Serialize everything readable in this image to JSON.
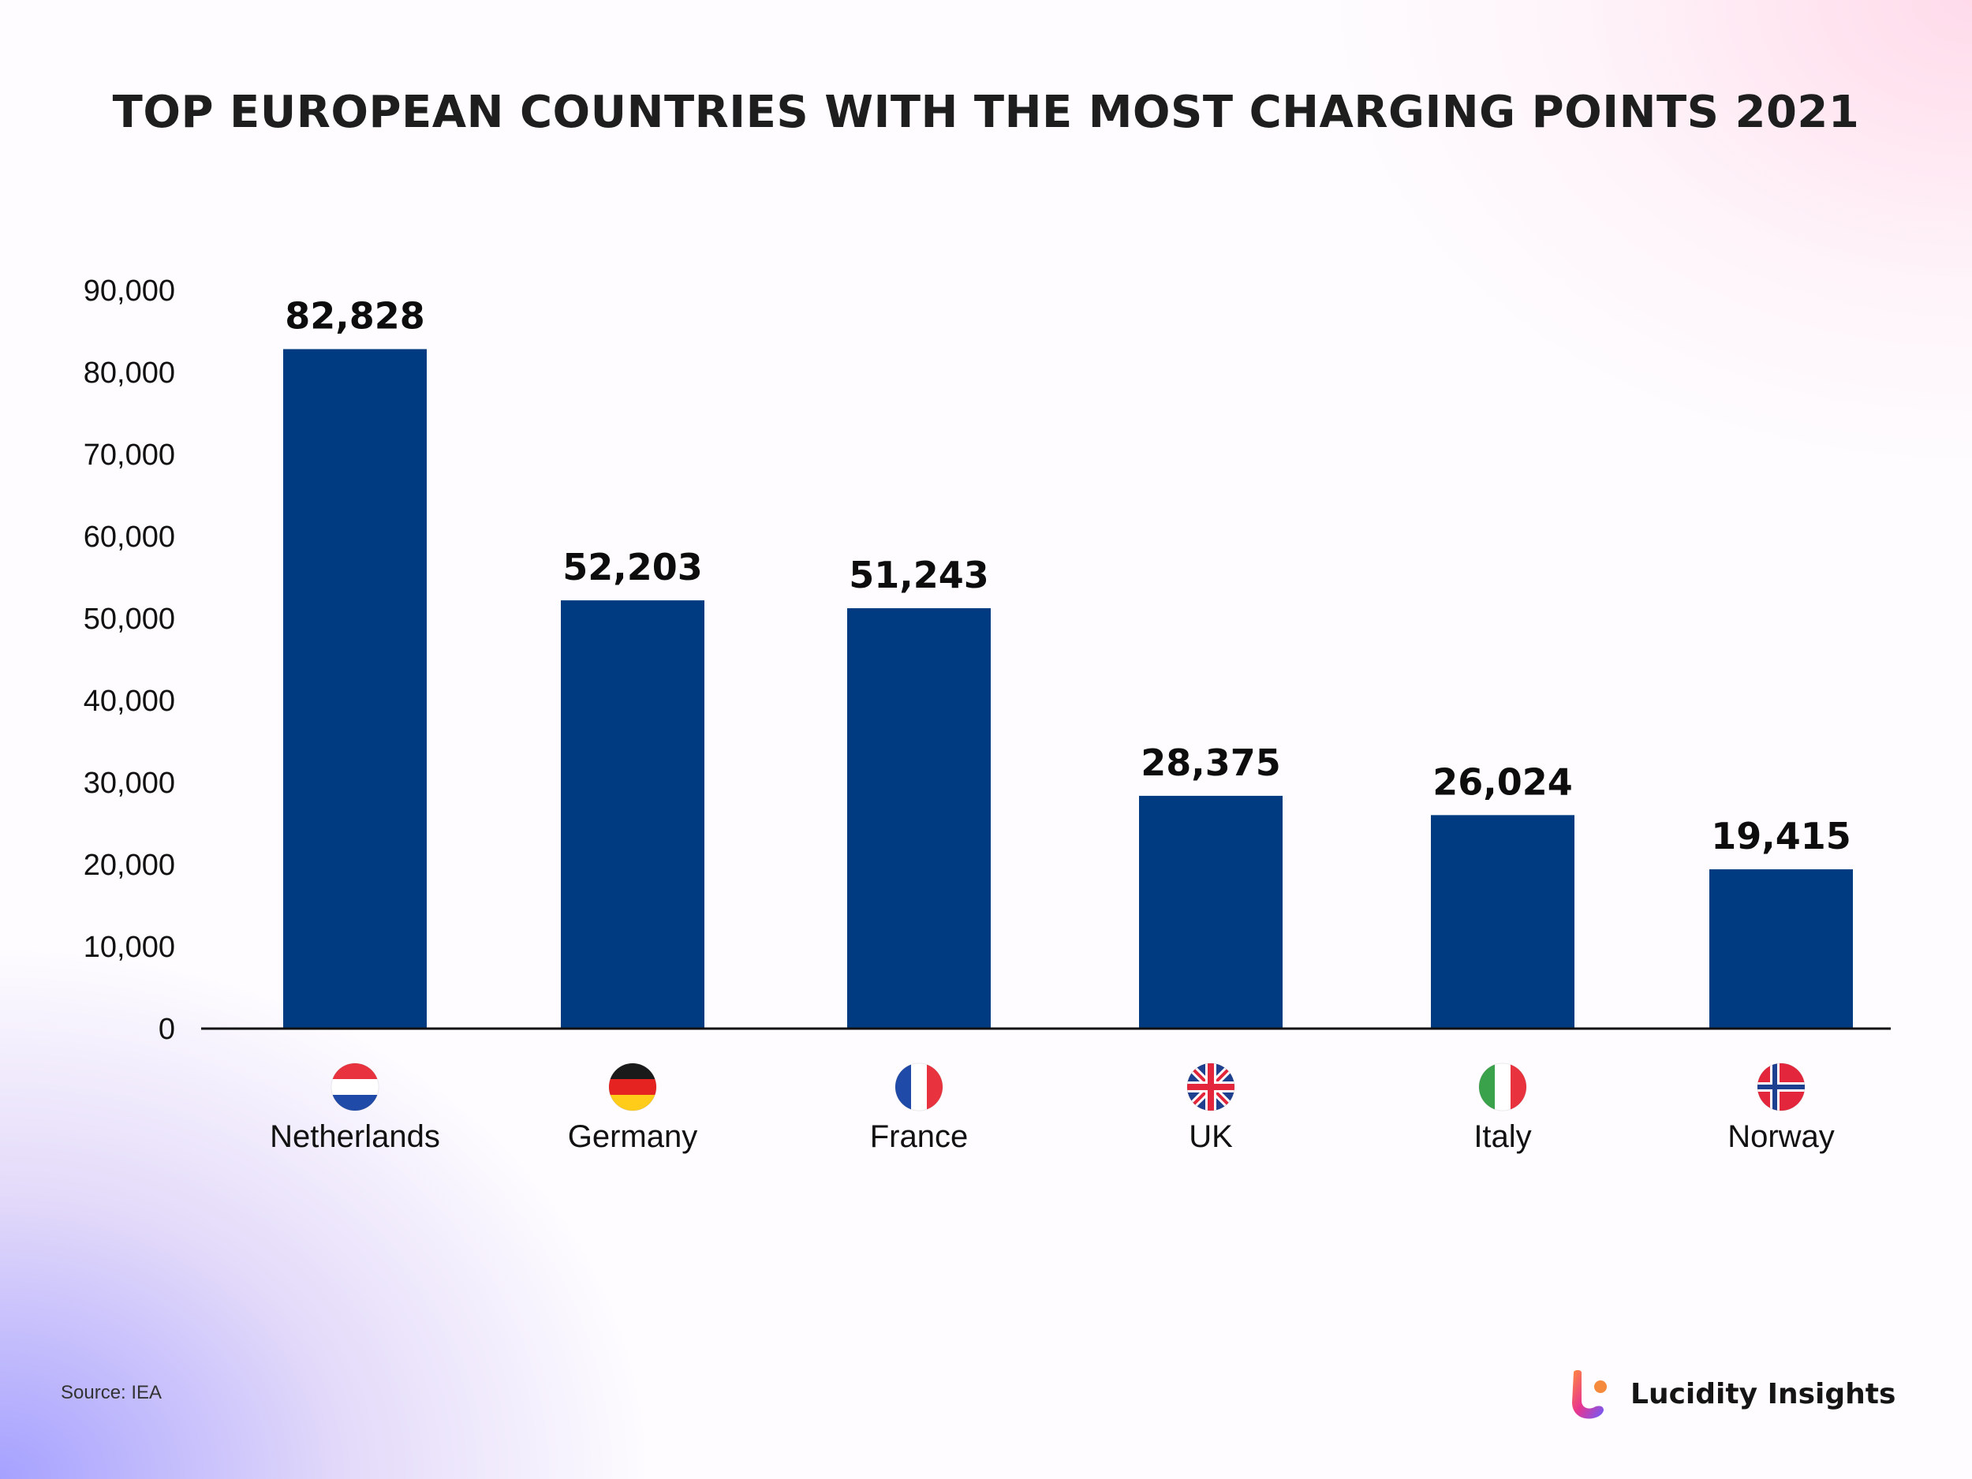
{
  "chart_data": {
    "type": "bar",
    "title": "TOP EUROPEAN COUNTRIES WITH THE MOST CHARGING POINTS 2021",
    "categories": [
      "Netherlands",
      "Germany",
      "France",
      "UK",
      "Italy",
      "Norway"
    ],
    "values": [
      82828,
      52203,
      51243,
      28375,
      26024,
      19415
    ],
    "value_labels": [
      "82,828",
      "52,203",
      "51,243",
      "28,375",
      "26,024",
      "19,415"
    ],
    "flag_icons": [
      "netherlands-flag-icon",
      "germany-flag-icon",
      "france-flag-icon",
      "uk-flag-icon",
      "italy-flag-icon",
      "norway-flag-icon"
    ],
    "y_ticks": [
      0,
      10000,
      20000,
      30000,
      40000,
      50000,
      60000,
      70000,
      80000,
      90000
    ],
    "y_tick_labels": [
      "0",
      "10,000",
      "20,000",
      "30,000",
      "40,000",
      "50,000",
      "60,000",
      "70,000",
      "80,000",
      "90,000"
    ],
    "ylim": [
      0,
      90000
    ],
    "xlabel": "",
    "ylabel": "",
    "grid": false,
    "bar_color": "#003A80"
  },
  "footer": {
    "source": "Source: IEA",
    "brand": "Lucidity Insights",
    "brand_icon": "lucidity-logo-icon"
  }
}
